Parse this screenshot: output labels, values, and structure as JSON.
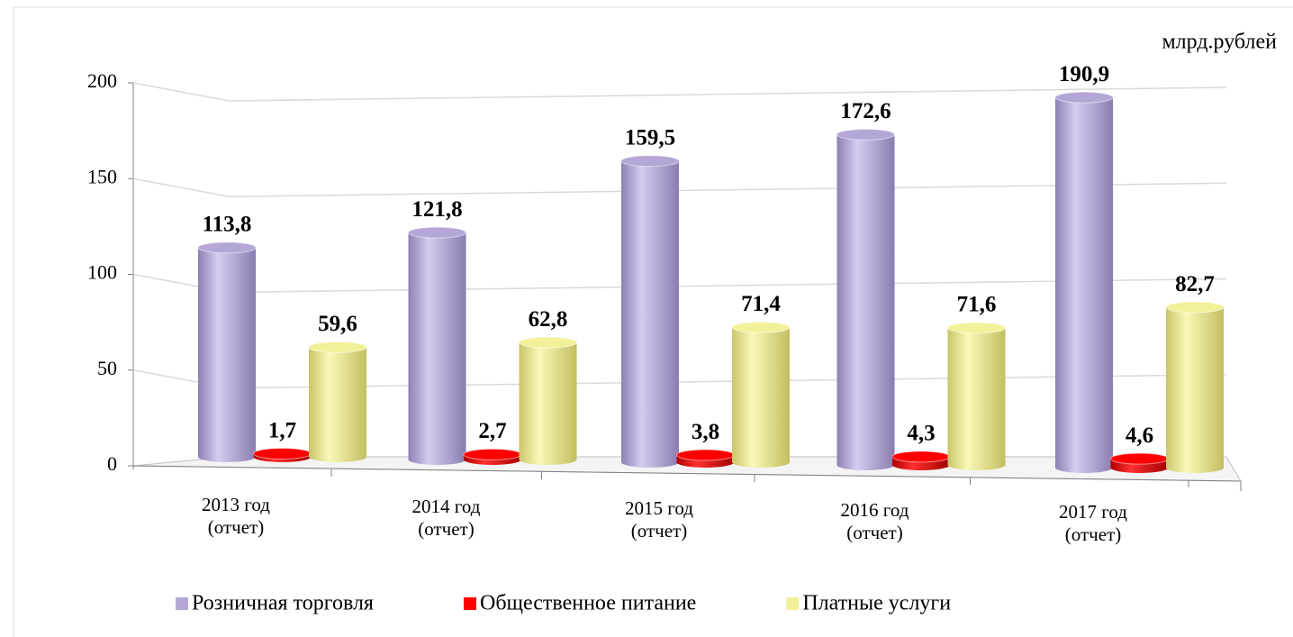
{
  "chart_data": {
    "type": "bar3d",
    "unit": "млрд.рублей",
    "categories": [
      "2013 год\n(отчет)",
      "2014 год\n(отчет)",
      "2015 год\n(отчет)",
      "2016 год\n(отчет)",
      "2017 год\n(отчет)"
    ],
    "series": [
      {
        "name": "Розничная торговля",
        "color": "#b4a7d6",
        "values": [
          113.8,
          121.8,
          159.5,
          172.6,
          190.9
        ],
        "value_labels": [
          "113,8",
          "121,8",
          "159,5",
          "172,6",
          "190,9"
        ]
      },
      {
        "name": "Общественное питание",
        "color": "#ff0000",
        "values": [
          1.7,
          2.7,
          3.8,
          4.3,
          4.6
        ],
        "value_labels": [
          "1,7",
          "2,7",
          "3,8",
          "4,3",
          "4,6"
        ]
      },
      {
        "name": "Платные услуги",
        "color": "#f3f09a",
        "values": [
          59.6,
          62.8,
          71.4,
          71.6,
          82.7
        ],
        "value_labels": [
          "59,6",
          "62,8",
          "71,4",
          "71,6",
          "82,7"
        ]
      }
    ],
    "ylim": [
      0,
      200
    ],
    "yticks": [
      0,
      50,
      100,
      150,
      200
    ],
    "grid": true,
    "legend": "bottom"
  }
}
